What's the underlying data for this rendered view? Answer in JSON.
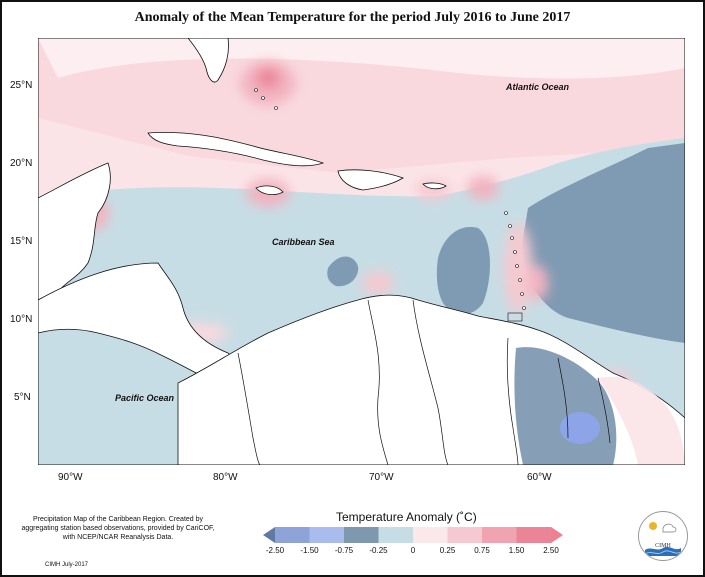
{
  "title": "Anomaly of the Mean Temperature for the period July 2016 to June 2017",
  "latitude_labels": [
    "25°N",
    "20°N",
    "15°N",
    "10°N",
    "5°N"
  ],
  "longitude_labels": [
    "90°W",
    "80°W",
    "70°W",
    "60°W"
  ],
  "ocean_labels": {
    "atlantic": "Atlantic Ocean",
    "caribbean": "Caribbean Sea",
    "pacific": "Pacific Ocean"
  },
  "footer_note": "Precipitation Map of the Caribbean Region. Created by aggregating station based observations, provided by CariCOF, with NCEP/NCAR Reanalysis Data.",
  "credit": "CIMH July-2017",
  "legend": {
    "title": "Temperature Anomaly (˚C)",
    "ticks": [
      "-2.50",
      "-1.50",
      "-0.75",
      "-0.25",
      "0",
      "0.25",
      "0.75",
      "1.50",
      "2.50"
    ],
    "colors": [
      "#5f7aa3",
      "#8ea4d8",
      "#aabbee",
      "#7e98b0",
      "#c6dde6",
      "#fbe8ea",
      "#f6c9d0",
      "#f0a4b2",
      "#eb8497",
      "#f07f8f"
    ]
  },
  "logo_text": "CIMH",
  "map_colors": {
    "warm_light": "#f9d9de",
    "warm_mid": "#f2b3c0",
    "warm_strong": "#eb8497",
    "cool_light": "#c7dde5",
    "cool_mid": "#7f9ab3",
    "cool_strong": "#8ea4e8",
    "neutral": "#fdf2f3",
    "land_outline": "#111111"
  }
}
